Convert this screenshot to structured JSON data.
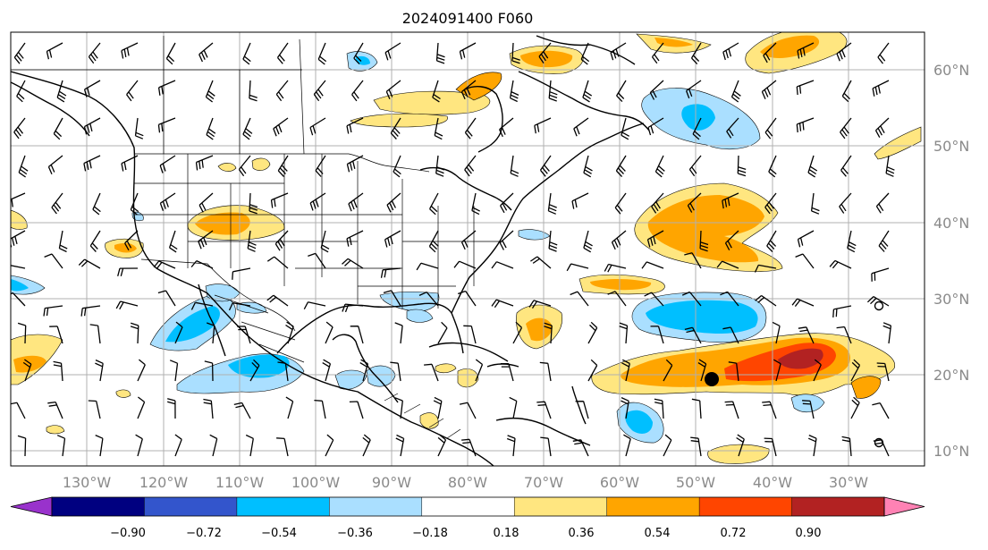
{
  "title": "2024091400 F060",
  "longitude_labels": [
    "130°W",
    "120°W",
    "110°W",
    "100°W",
    "90°W",
    "80°W",
    "70°W",
    "60°W",
    "50°W",
    "40°W",
    "30°W"
  ],
  "latitude_labels": [
    "60°N",
    "50°N",
    "40°N",
    "30°N",
    "20°N",
    "10°N"
  ],
  "colorbar": {
    "tick_labels": [
      "−0.90",
      "−0.72",
      "−0.54",
      "−0.36",
      "−0.18",
      "0.18",
      "0.36",
      "0.54",
      "0.72",
      "0.90"
    ],
    "colors": [
      "#9932cc",
      "#000080",
      "#3355cc",
      "#00bfff",
      "#aadfff",
      "#ffffff",
      "#ffe680",
      "#ffa500",
      "#ff4500",
      "#b22222",
      "#ff82b4"
    ]
  },
  "chart_data": {
    "type": "heatmap",
    "title": "2024091400 F060",
    "x_range_deg_lon": [
      -138,
      -18
    ],
    "y_range_deg_lat": [
      7,
      65
    ],
    "contour_levels": [
      -0.9,
      -0.72,
      -0.54,
      -0.36,
      -0.18,
      0.18,
      0.36,
      0.54,
      0.72,
      0.9
    ],
    "features": [
      {
        "name": "positive anomaly tropical Atlantic",
        "lon": [
          -67,
          -24
        ],
        "lat": [
          15,
          25
        ],
        "peak": 0.72
      },
      {
        "name": "positive anomaly western Atlantic",
        "lon": [
          -62,
          -46
        ],
        "lat": [
          33,
          46
        ],
        "peak": 0.54
      },
      {
        "name": "negative anomaly central Atlantic",
        "lon": [
          -60,
          -47
        ],
        "lat": [
          26,
          31
        ],
        "peak": -0.54
      },
      {
        "name": "negative anomaly eastern Pacific",
        "lon": [
          -116,
          -100
        ],
        "lat": [
          16,
          26
        ],
        "peak": -0.54
      },
      {
        "name": "negative anomaly north Atlantic",
        "lon": [
          -60,
          -48
        ],
        "lat": [
          50,
          58
        ],
        "peak": -0.54
      }
    ],
    "marker": {
      "symbol": "dot",
      "lon": -50.5,
      "lat": 19.5
    }
  }
}
